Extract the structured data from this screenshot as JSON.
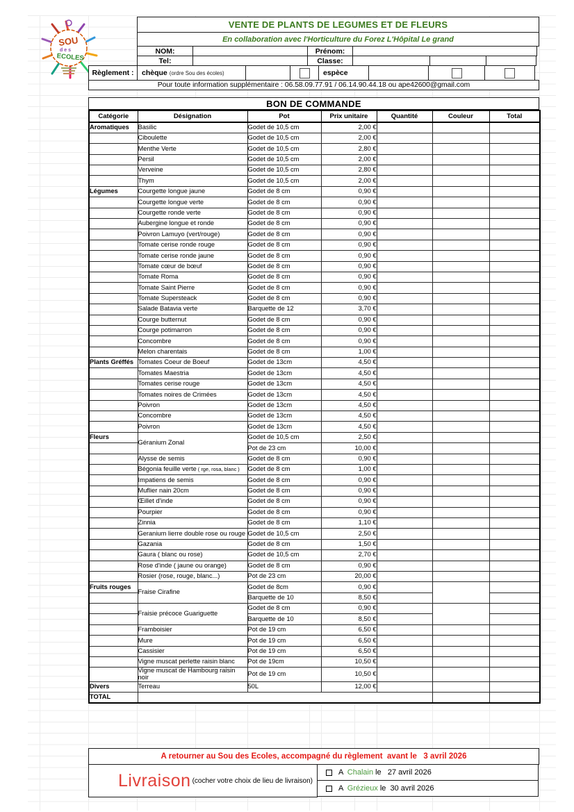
{
  "header": {
    "logo": "Sou des Écoles",
    "title": "VENTE DE PLANTS DE LEGUMES ET DE FLEURS",
    "subtitle": "En collaboration avec l'Horticulture du Forez L'Hôpital Le grand",
    "fields": {
      "nom": "NOM:",
      "prenom": "Prénom:",
      "tel": "Tel:",
      "classe": "Classe:"
    },
    "reglement": {
      "label": "Règlement :",
      "cheque": "chèque",
      "cheque_note": "(ordre Sou des écoles)",
      "espece": "espèce"
    },
    "info_line": "Pour toute information supplémentaire : 06.58.09.77.91 / 06.14.90.44.18 ou ape42600@gmail.com"
  },
  "order_form": {
    "title": "BON DE COMMANDE",
    "columns": [
      "Catégorie",
      "Désignation",
      "Pot",
      "Prix unitaire",
      "Quantité",
      "Couleur",
      "Total"
    ],
    "total_label": "TOTAL",
    "rows": [
      {
        "category": "Aromatiques",
        "designation": "Basilic",
        "pot": "Godet de 10,5 cm",
        "price": "2,00 €"
      },
      {
        "designation": "Ciboulette",
        "pot": "Godet de 10,5 cm",
        "price": "2,00 €"
      },
      {
        "designation": "Menthe Verte",
        "pot": "Godet de 10,5 cm",
        "price": "2,80 €"
      },
      {
        "designation": "Persil",
        "pot": "Godet de 10,5 cm",
        "price": "2,00 €"
      },
      {
        "designation": "Verveine",
        "pot": "Godet de 10,5 cm",
        "price": "2,80 €"
      },
      {
        "designation": "Thym",
        "pot": "Godet de 10,5 cm",
        "price": "2,00 €"
      },
      {
        "category": "Légumes",
        "designation": "Courgette longue jaune",
        "pot": "Godet de 8 cm",
        "price": "0,90 €"
      },
      {
        "designation": "Courgette longue verte",
        "pot": "Godet de 8 cm",
        "price": "0,90 €"
      },
      {
        "designation": "Courgette ronde verte",
        "pot": "Godet de 8 cm",
        "price": "0,90 €"
      },
      {
        "designation": "Aubergine longue et ronde",
        "pot": "Godet de 8 cm",
        "price": "0,90 €"
      },
      {
        "designation": "Poivron Lamuyo (vert/rouge)",
        "pot": "Godet de 8 cm",
        "price": "0,90 €"
      },
      {
        "designation": "Tomate cerise ronde rouge",
        "pot": "Godet de 8 cm",
        "price": "0,90 €"
      },
      {
        "designation": "Tomate cerise ronde jaune",
        "pot": "Godet de 8 cm",
        "price": "0,90 €"
      },
      {
        "designation": "Tomate cœur de bœuf",
        "pot": "Godet de 8 cm",
        "price": "0,90 €"
      },
      {
        "designation": "Tomate Roma",
        "pot": "Godet de 8 cm",
        "price": "0,90 €"
      },
      {
        "designation": "Tomate Saint Pierre",
        "pot": "Godet de 8 cm",
        "price": "0,90 €"
      },
      {
        "designation": "Tomate Supersteack",
        "pot": "Godet de 8 cm",
        "price": "0,90 €"
      },
      {
        "designation": "Salade Batavia verte",
        "pot": "Barquette de 12",
        "price": "3,70 €"
      },
      {
        "designation": "Courge butternut",
        "pot": "Godet de 8 cm",
        "price": "0,90 €"
      },
      {
        "designation": "Courge potimarron",
        "pot": "Godet de 8 cm",
        "price": "0,90 €"
      },
      {
        "designation": "Concombre",
        "pot": "Godet de 8 cm",
        "price": "0,90 €"
      },
      {
        "designation": "Melon charentais",
        "pot": "Godet de 8 cm",
        "price": "1,00 €"
      },
      {
        "category": "Plants Gréffés",
        "designation": "Tomates Coeur de Boeuf",
        "pot": "Godet de 13cm",
        "price": "4,50 €"
      },
      {
        "designation": "Tomates Maestria",
        "pot": "Godet de 13cm",
        "price": "4,50 €"
      },
      {
        "designation": "Tomates cerise rouge",
        "pot": "Godet de 13cm",
        "price": "4,50 €"
      },
      {
        "designation": "Tomates noires de Crimées",
        "pot": "Godet de 13cm",
        "price": "4,50 €"
      },
      {
        "designation": "Poivron",
        "pot": "Godet de 13cm",
        "price": "4,50 €"
      },
      {
        "designation": "Concombre",
        "pot": "Godet de 13cm",
        "price": "4,50 €"
      },
      {
        "designation": "Poivron",
        "pot": "Godet de 13cm",
        "price": "4,50 €"
      },
      {
        "category": "Fleurs",
        "designation": "Géranium Zonal",
        "rowspan": 2,
        "pot": "Godet de 10,5 cm",
        "price": "2,50 €"
      },
      {
        "merged": true,
        "pot": "Pot de 23 cm",
        "price": "10,00 €"
      },
      {
        "designation": "Alysse de semis",
        "pot": "Godet de 8 cm",
        "price": "0,90 €"
      },
      {
        "designation": "Bégonia feuille verte",
        "note": "( rge, rosa, blanc )",
        "pot": "Godet de 8 cm",
        "price": "1,00 €",
        "couleur_white": true
      },
      {
        "designation": "Impatiens de semis",
        "pot": "Godet de 8 cm",
        "price": "0,90 €"
      },
      {
        "designation": "Muflier nain 20cm",
        "pot": "Godet de 8 cm",
        "price": "0,90 €"
      },
      {
        "designation": "Œillet d'inde",
        "pot": "Godet de 8 cm",
        "price": "0,90 €"
      },
      {
        "designation": "Pourpier",
        "pot": "Godet de 8 cm",
        "price": "0,90 €"
      },
      {
        "designation": "Zinnia",
        "pot": "Godet de 8 cm",
        "price": "1,10 €"
      },
      {
        "designation": "Geranium lierre double rose ou rouge",
        "pot": "Godet de 10,5 cm",
        "price": "2,50 €",
        "couleur_white": true
      },
      {
        "designation": "Gazania",
        "pot": "Godet de 8 cm",
        "price": "1,50 €"
      },
      {
        "designation": "Gaura ( blanc ou rose)",
        "pot": "Godet de 10,5 cm",
        "price": "2,70 €",
        "couleur_white": true
      },
      {
        "designation": "Rose d'inde ( jaune ou orange)",
        "pot": "Godet de 8 cm",
        "price": "0,90 €",
        "couleur_white": true
      },
      {
        "designation": "Rosier (rose, rouge, blanc...)",
        "pot": "Pot de 23 cm",
        "price": "20,00 €",
        "couleur_white": true
      },
      {
        "category": "Fruits rouges",
        "designation": "Fraise Cirafine",
        "rowspan": 2,
        "couleur_rowspan": 2,
        "pot": "Godet de 8cm",
        "price": "0,90 €"
      },
      {
        "merged": true,
        "couleur_merged": true,
        "pot": "Barquette de 10",
        "price": "8,50 €"
      },
      {
        "designation": "Fraisie précoce Guariguette",
        "rowspan": 2,
        "couleur_rowspan": 2,
        "pot": "Godet de 8 cm",
        "price": "0,90 €"
      },
      {
        "merged": true,
        "couleur_merged": true,
        "pot": "Barquette de 10",
        "price": "8,50 €"
      },
      {
        "designation": "Framboisier",
        "pot": "Pot de 19 cm",
        "price": "6,50 €"
      },
      {
        "designation": "Mure",
        "pot": "Pot de 19 cm",
        "price": "6,50 €"
      },
      {
        "designation": "Cassisier",
        "pot": "Pot de 19 cm",
        "price": "6,50 €"
      },
      {
        "designation": "Vigne muscat perlette raisin blanc",
        "pot": "Pot de 19cm",
        "price": "10,50 €"
      },
      {
        "designation": "Vigne muscat de Hambourg raisin noir",
        "pot": "Pot de 19 cm",
        "price": "10,50 €"
      },
      {
        "category": "Divers",
        "designation": "Terreau",
        "pot": "50L",
        "price": "12,00 €"
      }
    ]
  },
  "footer": {
    "notice": "A retourner au Sou des Ecoles, accompagné du règlement  avant le   3 avril 2026",
    "livraison_label": "Livraison",
    "livraison_note": "(cocher votre choix de lieu de livraison)",
    "options": [
      {
        "prefix": "A ",
        "place": "Chalain",
        "rest": "le   27 avril 2026"
      },
      {
        "prefix": "A ",
        "place": "Grézieux",
        "rest": "le  30 avril 2026"
      }
    ]
  },
  "colors": {
    "title_green": "#3e7c22",
    "place_green": "#4c9a3e",
    "notice_red": "#e41b17",
    "livraison_red": "#e2423b",
    "couleur_cell_fill": "#d9d9d9",
    "total_band_fill": "#e9e9e9"
  }
}
